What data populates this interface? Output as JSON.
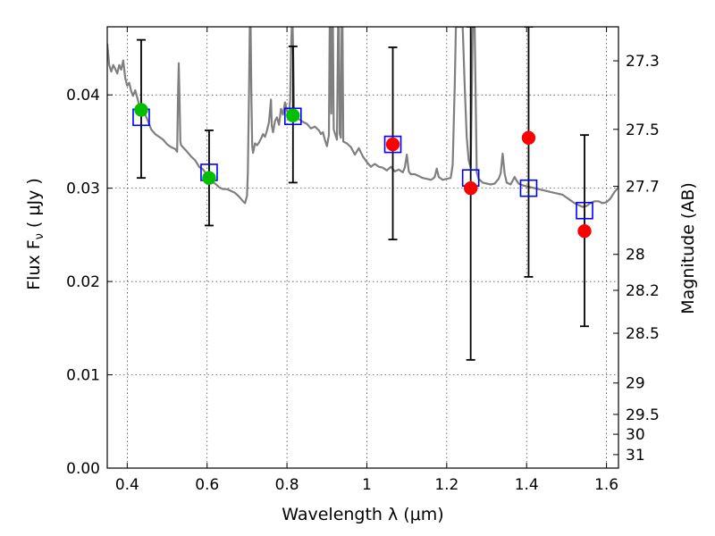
{
  "chart_data": {
    "type": "scatter",
    "title": "",
    "xlabel": "Wavelength  λ (μm)",
    "ylabel": "Flux  F",
    "ylabel_sub": "ν",
    "ylabel_unit": "( μJy )",
    "y2label": "Magnitude (AB)",
    "xlim": [
      0.35,
      1.63
    ],
    "ylim": [
      0.0,
      0.0473
    ],
    "grid": true,
    "x_ticks": [
      0.4,
      0.6,
      0.8,
      1.0,
      1.2,
      1.4,
      1.6
    ],
    "x_tick_labels": [
      "0.4",
      "0.6",
      "0.8",
      "1",
      "1.2",
      "1.4",
      "1.6"
    ],
    "y_ticks": [
      0.0,
      0.01,
      0.02,
      0.03,
      0.04
    ],
    "y_tick_labels": [
      "0.00",
      "0.01",
      "0.02",
      "0.03",
      "0.04"
    ],
    "y2_ticks": [
      27.3,
      27.5,
      27.7,
      28,
      28.2,
      28.5,
      29,
      29.5,
      30,
      31
    ],
    "y2_tick_labels": [
      "27.3",
      "27.5",
      "27.7",
      "28",
      "28.2",
      "28.5",
      "29",
      "29.5",
      "30",
      "31"
    ],
    "colors": {
      "model": "#7f7f7f",
      "green": "#00bf00",
      "red": "#ff0000",
      "model_band": "#0000ff",
      "errorbar": "#000000"
    },
    "series": [
      {
        "marker": "line",
        "points": [
          [
            0.35,
            0.0455
          ],
          [
            0.355,
            0.0432
          ],
          [
            0.36,
            0.0425
          ],
          [
            0.365,
            0.0432
          ],
          [
            0.37,
            0.0428
          ],
          [
            0.375,
            0.0423
          ],
          [
            0.38,
            0.0432
          ],
          [
            0.385,
            0.0427
          ],
          [
            0.39,
            0.0437
          ],
          [
            0.395,
            0.0418
          ],
          [
            0.4,
            0.041
          ],
          [
            0.405,
            0.0413
          ],
          [
            0.41,
            0.0404
          ],
          [
            0.415,
            0.0399
          ],
          [
            0.42,
            0.0405
          ],
          [
            0.43,
            0.0389
          ],
          [
            0.44,
            0.0384
          ],
          [
            0.45,
            0.0374
          ],
          [
            0.46,
            0.0363
          ],
          [
            0.47,
            0.0358
          ],
          [
            0.48,
            0.0355
          ],
          [
            0.49,
            0.0352
          ],
          [
            0.5,
            0.0347
          ],
          [
            0.51,
            0.0344
          ],
          [
            0.52,
            0.0342
          ],
          [
            0.525,
            0.0339
          ],
          [
            0.527,
            0.0395
          ],
          [
            0.529,
            0.0434
          ],
          [
            0.531,
            0.0395
          ],
          [
            0.533,
            0.035
          ],
          [
            0.535,
            0.0346
          ],
          [
            0.55,
            0.0339
          ],
          [
            0.56,
            0.0334
          ],
          [
            0.57,
            0.033
          ],
          [
            0.58,
            0.0323
          ],
          [
            0.59,
            0.032
          ],
          [
            0.6,
            0.0314
          ],
          [
            0.61,
            0.0308
          ],
          [
            0.62,
            0.0305
          ],
          [
            0.63,
            0.0301
          ],
          [
            0.64,
            0.0299
          ],
          [
            0.65,
            0.0299
          ],
          [
            0.66,
            0.0297
          ],
          [
            0.67,
            0.0295
          ],
          [
            0.68,
            0.0291
          ],
          [
            0.69,
            0.0286
          ],
          [
            0.695,
            0.0284
          ],
          [
            0.7,
            0.0292
          ],
          [
            0.702,
            0.0316
          ],
          [
            0.705,
            0.0402
          ],
          [
            0.707,
            0.0473
          ],
          [
            0.709,
            0.0473
          ],
          [
            0.711,
            0.0397
          ],
          [
            0.713,
            0.0345
          ],
          [
            0.715,
            0.0338
          ],
          [
            0.72,
            0.0348
          ],
          [
            0.725,
            0.0346
          ],
          [
            0.73,
            0.0349
          ],
          [
            0.735,
            0.0353
          ],
          [
            0.74,
            0.0358
          ],
          [
            0.745,
            0.0355
          ],
          [
            0.75,
            0.0362
          ],
          [
            0.755,
            0.0371
          ],
          [
            0.76,
            0.0395
          ],
          [
            0.762,
            0.0367
          ],
          [
            0.765,
            0.036
          ],
          [
            0.77,
            0.0372
          ],
          [
            0.775,
            0.0376
          ],
          [
            0.78,
            0.0368
          ],
          [
            0.785,
            0.0385
          ],
          [
            0.79,
            0.0379
          ],
          [
            0.795,
            0.0392
          ],
          [
            0.8,
            0.0383
          ],
          [
            0.805,
            0.0379
          ],
          [
            0.808,
            0.0395
          ],
          [
            0.81,
            0.0448
          ],
          [
            0.812,
            0.0473
          ],
          [
            0.814,
            0.0473
          ],
          [
            0.816,
            0.0435
          ],
          [
            0.818,
            0.038
          ],
          [
            0.82,
            0.0376
          ],
          [
            0.83,
            0.0374
          ],
          [
            0.84,
            0.0371
          ],
          [
            0.85,
            0.0369
          ],
          [
            0.86,
            0.0364
          ],
          [
            0.87,
            0.0366
          ],
          [
            0.88,
            0.0362
          ],
          [
            0.885,
            0.0358
          ],
          [
            0.89,
            0.036
          ],
          [
            0.895,
            0.0352
          ],
          [
            0.9,
            0.0345
          ],
          [
            0.905,
            0.0357
          ],
          [
            0.907,
            0.0473
          ],
          [
            0.909,
            0.0473
          ],
          [
            0.911,
            0.038
          ],
          [
            0.913,
            0.0473
          ],
          [
            0.915,
            0.0473
          ],
          [
            0.917,
            0.0363
          ],
          [
            0.92,
            0.0359
          ],
          [
            0.925,
            0.0352
          ],
          [
            0.928,
            0.0473
          ],
          [
            0.93,
            0.0473
          ],
          [
            0.932,
            0.0358
          ],
          [
            0.935,
            0.0354
          ],
          [
            0.937,
            0.0473
          ],
          [
            0.939,
            0.0473
          ],
          [
            0.941,
            0.035
          ],
          [
            0.95,
            0.0348
          ],
          [
            0.96,
            0.0344
          ],
          [
            0.97,
            0.0336
          ],
          [
            0.98,
            0.0343
          ],
          [
            0.99,
            0.0334
          ],
          [
            1.0,
            0.0328
          ],
          [
            1.01,
            0.0323
          ],
          [
            1.02,
            0.0326
          ],
          [
            1.03,
            0.0323
          ],
          [
            1.04,
            0.0322
          ],
          [
            1.05,
            0.0319
          ],
          [
            1.06,
            0.0323
          ],
          [
            1.07,
            0.0318
          ],
          [
            1.08,
            0.032
          ],
          [
            1.09,
            0.0317
          ],
          [
            1.095,
            0.0322
          ],
          [
            1.1,
            0.0336
          ],
          [
            1.105,
            0.0318
          ],
          [
            1.11,
            0.0315
          ],
          [
            1.12,
            0.0315
          ],
          [
            1.13,
            0.0313
          ],
          [
            1.14,
            0.0311
          ],
          [
            1.15,
            0.031
          ],
          [
            1.16,
            0.0309
          ],
          [
            1.165,
            0.031
          ],
          [
            1.17,
            0.0312
          ],
          [
            1.175,
            0.0321
          ],
          [
            1.18,
            0.0312
          ],
          [
            1.19,
            0.0309
          ],
          [
            1.2,
            0.031
          ],
          [
            1.21,
            0.0311
          ],
          [
            1.215,
            0.0325
          ],
          [
            1.22,
            0.041
          ],
          [
            1.223,
            0.0473
          ],
          [
            1.235,
            0.0473
          ],
          [
            1.24,
            0.0473
          ],
          [
            1.245,
            0.0408
          ],
          [
            1.25,
            0.0355
          ],
          [
            1.255,
            0.033
          ],
          [
            1.26,
            0.0322
          ],
          [
            1.265,
            0.0473
          ],
          [
            1.27,
            0.0473
          ],
          [
            1.275,
            0.0317
          ],
          [
            1.28,
            0.031
          ],
          [
            1.29,
            0.0306
          ],
          [
            1.3,
            0.0305
          ],
          [
            1.31,
            0.0304
          ],
          [
            1.32,
            0.0305
          ],
          [
            1.33,
            0.031
          ],
          [
            1.335,
            0.0316
          ],
          [
            1.34,
            0.0337
          ],
          [
            1.345,
            0.0316
          ],
          [
            1.35,
            0.0306
          ],
          [
            1.36,
            0.0304
          ],
          [
            1.365,
            0.0308
          ],
          [
            1.37,
            0.0312
          ],
          [
            1.375,
            0.0308
          ],
          [
            1.38,
            0.0305
          ],
          [
            1.39,
            0.0303
          ],
          [
            1.4,
            0.0302
          ],
          [
            1.41,
            0.0301
          ],
          [
            1.42,
            0.03
          ],
          [
            1.43,
            0.0299
          ],
          [
            1.44,
            0.0298
          ],
          [
            1.45,
            0.0297
          ],
          [
            1.46,
            0.0296
          ],
          [
            1.47,
            0.0295
          ],
          [
            1.48,
            0.0294
          ],
          [
            1.49,
            0.0293
          ],
          [
            1.5,
            0.029
          ],
          [
            1.51,
            0.0287
          ],
          [
            1.52,
            0.0284
          ],
          [
            1.53,
            0.0282
          ],
          [
            1.54,
            0.028
          ],
          [
            1.55,
            0.0281
          ],
          [
            1.56,
            0.0284
          ],
          [
            1.57,
            0.0286
          ],
          [
            1.58,
            0.0286
          ],
          [
            1.59,
            0.0284
          ],
          [
            1.6,
            0.0285
          ],
          [
            1.61,
            0.0289
          ],
          [
            1.62,
            0.0296
          ],
          [
            1.63,
            0.0301
          ]
        ]
      },
      {
        "marker": "circle",
        "color": "#00bf00",
        "points": [
          {
            "x": 0.435,
            "y": 0.0384,
            "err_low": 0.0311,
            "err_high": 0.0459
          },
          {
            "x": 0.605,
            "y": 0.0311,
            "err_low": 0.026,
            "err_high": 0.0362
          },
          {
            "x": 0.815,
            "y": 0.0378,
            "err_low": 0.0306,
            "err_high": 0.0452
          }
        ]
      },
      {
        "marker": "circle",
        "color": "#ff0000",
        "points": [
          {
            "x": 1.065,
            "y": 0.0347,
            "err_low": 0.0245,
            "err_high": 0.0451
          },
          {
            "x": 1.26,
            "y": 0.03,
            "err_low": 0.0116,
            "err_high": 0.0473
          },
          {
            "x": 1.405,
            "y": 0.0354,
            "err_low": 0.0205,
            "err_high": 0.0473
          },
          {
            "x": 1.545,
            "y": 0.0254,
            "err_low": 0.0152,
            "err_high": 0.0357
          }
        ]
      },
      {
        "marker": "square",
        "color": "#0000ff",
        "points": [
          {
            "x": 0.435,
            "y": 0.0376
          },
          {
            "x": 0.605,
            "y": 0.0317
          },
          {
            "x": 0.815,
            "y": 0.0377
          },
          {
            "x": 1.065,
            "y": 0.0347
          },
          {
            "x": 1.26,
            "y": 0.0311
          },
          {
            "x": 1.405,
            "y": 0.03
          },
          {
            "x": 1.545,
            "y": 0.0276
          }
        ]
      }
    ]
  }
}
